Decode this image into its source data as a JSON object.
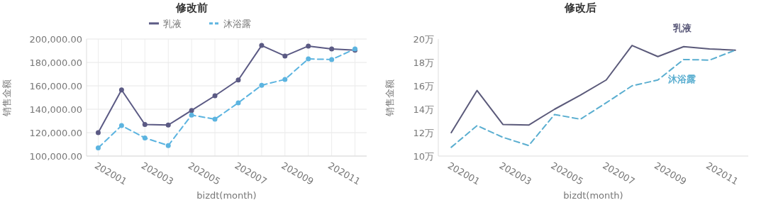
{
  "chart_data": [
    {
      "type": "line",
      "title": "修改前",
      "xlabel": "bizdt(month)",
      "ylabel": "销售金额",
      "categories": [
        "202001",
        null,
        "202003",
        null,
        "202005",
        null,
        "202007",
        null,
        "202009",
        null,
        "202011",
        null
      ],
      "series": [
        {
          "name": "乳液",
          "color": "#5b5a84",
          "line_style": "solid",
          "values": [
            120000,
            156500,
            127000,
            126500,
            139000,
            151500,
            165000,
            194500,
            185500,
            194000,
            191500,
            190500
          ]
        },
        {
          "name": "沐浴露",
          "color": "#5cb4e0",
          "line_style": "dashed",
          "values": [
            107000,
            126000,
            115500,
            109000,
            135000,
            131500,
            145500,
            160500,
            165500,
            183000,
            182500,
            191500
          ]
        }
      ],
      "ylim": [
        100000,
        200000
      ],
      "yticks": [
        {
          "value": 100000,
          "label": "100,000.00"
        },
        {
          "value": 120000,
          "label": "120,000.00"
        },
        {
          "value": 140000,
          "label": "140,000.00"
        },
        {
          "value": 160000,
          "label": "160,000.00"
        },
        {
          "value": 180000,
          "label": "180,000.00"
        },
        {
          "value": 200000,
          "label": "200,000.00"
        }
      ],
      "grid": true,
      "legend": "top",
      "marker": "circle"
    },
    {
      "type": "line",
      "title": "修改后",
      "xlabel": "bizdt(month)",
      "ylabel": "销售金额",
      "categories": [
        "202001",
        null,
        "202003",
        null,
        "202005",
        null,
        "202007",
        null,
        "202009",
        null,
        "202011",
        null
      ],
      "series": [
        {
          "name": "乳液",
          "color": "#5b5a7a",
          "line_style": "solid",
          "values": [
            12.0,
            15.6,
            12.7,
            12.65,
            14.0,
            15.2,
            16.5,
            19.45,
            18.5,
            19.35,
            19.15,
            19.05
          ]
        },
        {
          "name": "沐浴露",
          "color": "#5aaed0",
          "line_style": "dashed",
          "values": [
            10.75,
            12.6,
            11.6,
            10.9,
            13.55,
            13.15,
            14.55,
            16.0,
            16.5,
            18.25,
            18.2,
            19.05
          ]
        }
      ],
      "ylim": [
        10,
        20
      ],
      "yticks": [
        {
          "value": 10,
          "label": "10万"
        },
        {
          "value": 12,
          "label": "12万"
        },
        {
          "value": 14,
          "label": "14万"
        },
        {
          "value": 16,
          "label": "16万"
        },
        {
          "value": 18,
          "label": "18万"
        },
        {
          "value": 20,
          "label": "20万"
        }
      ],
      "grid": false,
      "legend": false,
      "marker": "none"
    }
  ]
}
